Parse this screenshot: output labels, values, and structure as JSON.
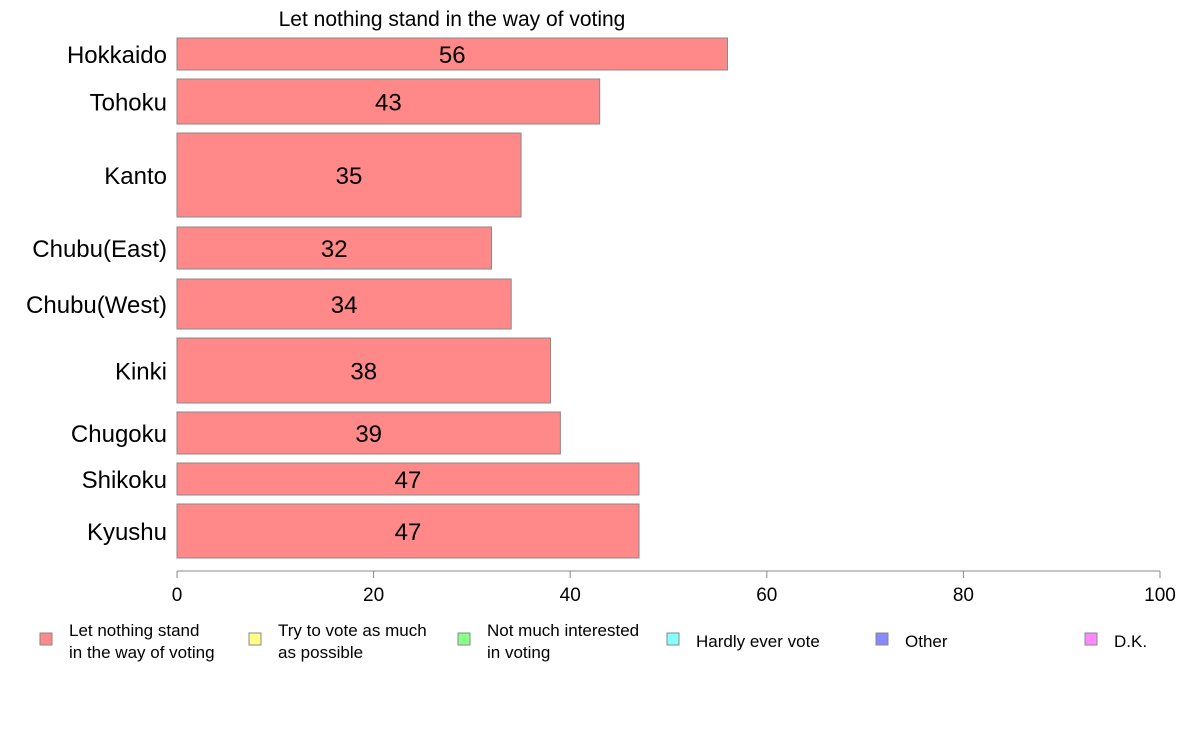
{
  "chart_data": {
    "type": "bar",
    "orientation": "horizontal",
    "title": "Let nothing stand in the way of voting",
    "categories": [
      "Hokkaido",
      "Tohoku",
      "Kanto",
      "Chubu(East)",
      "Chubu(West)",
      "Kinki",
      "Chugoku",
      "Shikoku",
      "Kyushu"
    ],
    "series": [
      {
        "name": "Let nothing stand in the way of voting",
        "color": "#ff8888",
        "values": [
          56,
          43,
          35,
          32,
          34,
          38,
          39,
          47,
          47
        ]
      }
    ],
    "xlim": [
      0,
      100
    ],
    "xticks": [
      "0",
      "20",
      "40",
      "60",
      "80",
      "100"
    ],
    "grid": false,
    "legend_position": "bottom",
    "legend": [
      {
        "label_lines": [
          "Let nothing stand",
          "in the way of voting"
        ],
        "color": "#ff8888"
      },
      {
        "label_lines": [
          "Try to vote as much",
          "as possible"
        ],
        "color": "#ffff88"
      },
      {
        "label_lines": [
          "Not much interested",
          "in voting"
        ],
        "color": "#88ff88"
      },
      {
        "label_lines": [
          "Hardly ever vote"
        ],
        "color": "#88ffff"
      },
      {
        "label_lines": [
          "Other"
        ],
        "color": "#8888ff"
      },
      {
        "label_lines": [
          "D.K."
        ],
        "color": "#ff88ff"
      }
    ]
  }
}
